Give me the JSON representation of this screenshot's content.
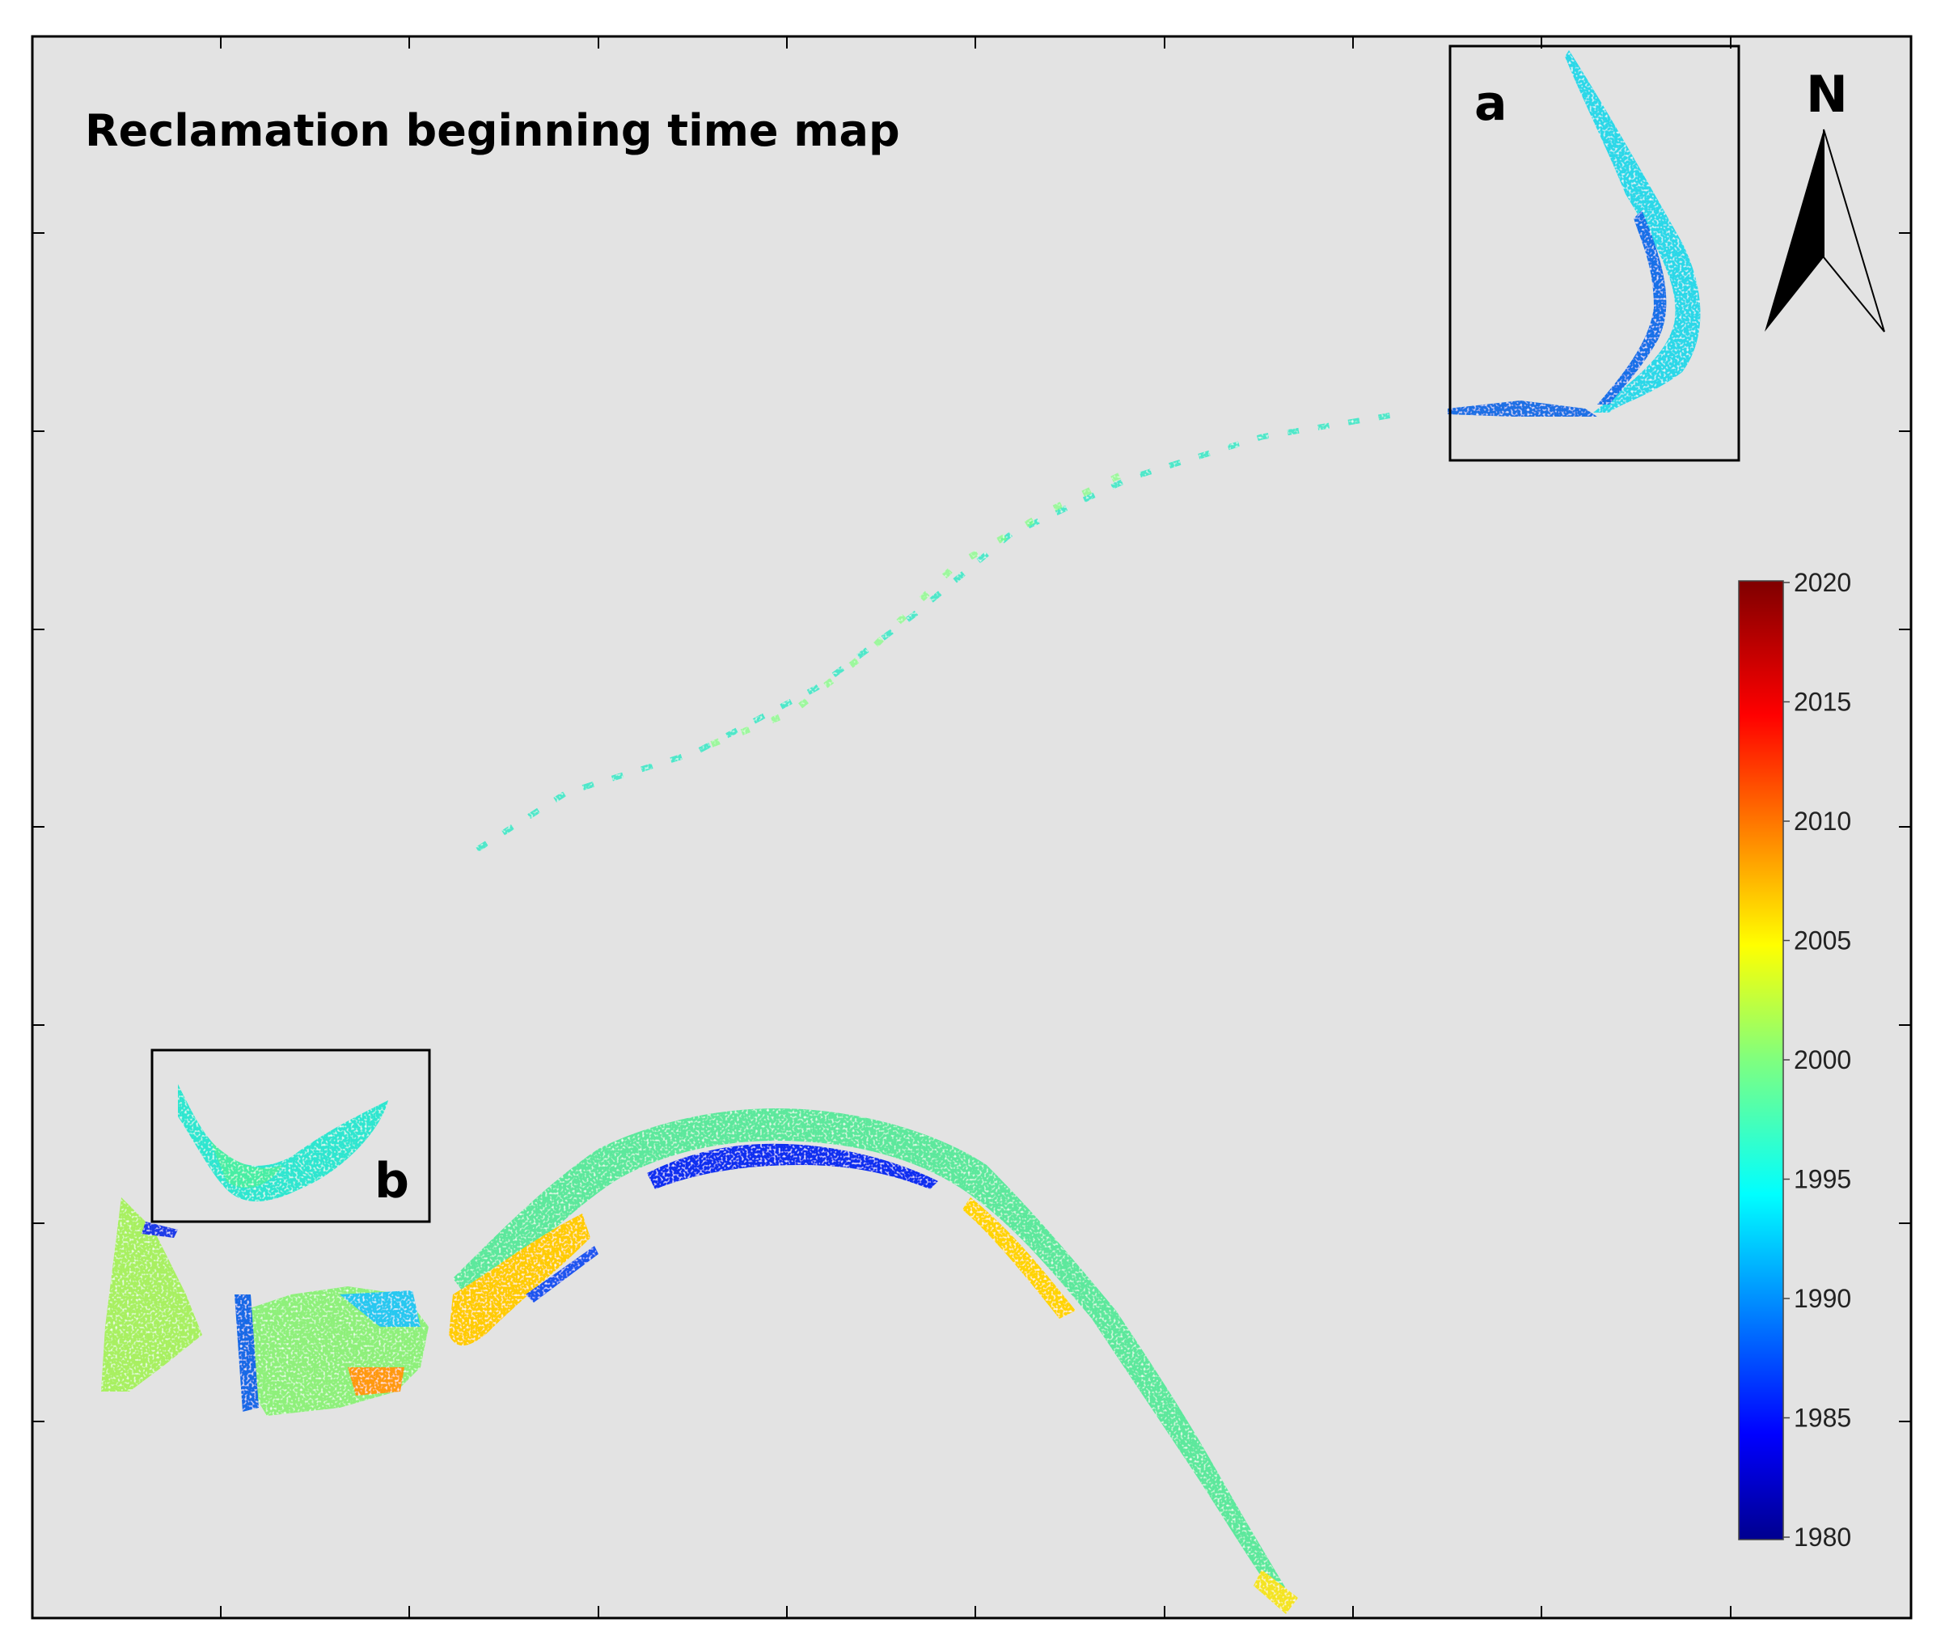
{
  "title": "Reclamation beginning time map",
  "insets": [
    {
      "label": "a"
    },
    {
      "label": "b"
    }
  ],
  "north_arrow": {
    "label": "N"
  },
  "legend": {
    "min": 1980,
    "max": 2020,
    "ticks": [
      "2020",
      "2015",
      "2010",
      "2005",
      "2000",
      "1995",
      "1990",
      "1985",
      "1980"
    ],
    "colormap": "jet"
  },
  "colors": {
    "map_background": "#e3e3e3",
    "frame": "#000000"
  }
}
